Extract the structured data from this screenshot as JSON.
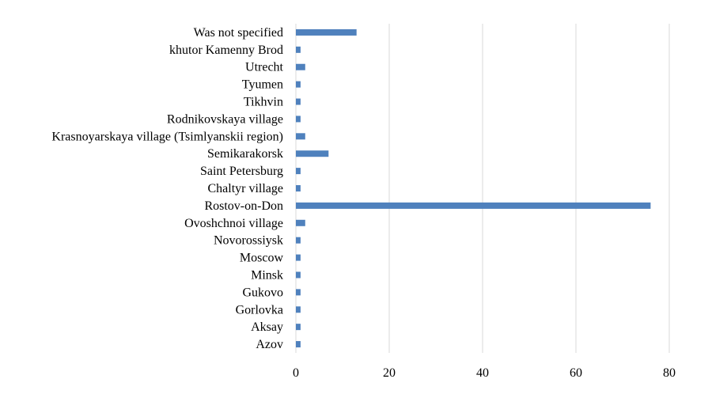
{
  "chart_data": {
    "type": "bar",
    "orientation": "horizontal",
    "title": "",
    "xlabel": "",
    "ylabel": "",
    "xlim": [
      0,
      80
    ],
    "xticks": [
      0,
      20,
      40,
      60,
      80
    ],
    "grid": true,
    "legend": "none",
    "bar_color": "#4f81bd",
    "categories": [
      "Was not specified",
      "khutor Kamenny Brod",
      "Utrecht",
      "Tyumen",
      "Tikhvin",
      "Rodnikovskaya village",
      "Krasnoyarskaya village (Tsimlyanskii region)",
      "Semikarakorsk",
      "Saint Petersburg",
      "Chaltyr village",
      "Rostov-on-Don",
      "Ovoshchnoi village",
      "Novorossiysk",
      "Moscow",
      "Minsk",
      "Gukovo",
      "Gorlovka",
      "Aksay",
      "Azov"
    ],
    "values": [
      13,
      1,
      2,
      1,
      1,
      1,
      2,
      7,
      1,
      1,
      76,
      2,
      1,
      1,
      1,
      1,
      1,
      1,
      1
    ]
  }
}
